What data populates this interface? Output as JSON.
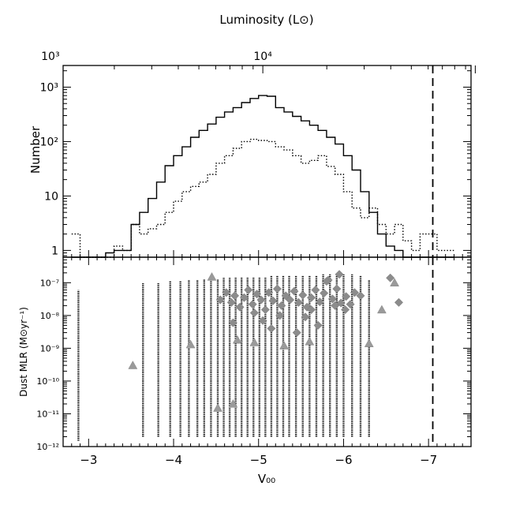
{
  "chart_data": [
    {
      "type": "line",
      "step": true,
      "panel": "top",
      "ylabel": "Number",
      "top_axis_label": "Luminosity (L⊙)",
      "top_axis_ticks": [
        {
          "value": 1000,
          "label": "10³"
        },
        {
          "value": 10000,
          "label": "10⁴"
        }
      ],
      "x_inverted": true,
      "xlim": [
        -2.7,
        -7.5
      ],
      "yscale": "log",
      "ylim": [
        0.75,
        2500
      ],
      "y_ticks": [
        {
          "value": 1,
          "label": "1"
        },
        {
          "value": 10,
          "label": "10"
        },
        {
          "value": 100,
          "label": "10²"
        },
        {
          "value": 1000,
          "label": "10³"
        }
      ],
      "bin_edges": [
        -2.8,
        -2.9,
        -3.0,
        -3.1,
        -3.2,
        -3.3,
        -3.4,
        -3.5,
        -3.6,
        -3.7,
        -3.8,
        -3.9,
        -4.0,
        -4.1,
        -4.2,
        -4.3,
        -4.4,
        -4.5,
        -4.6,
        -4.7,
        -4.8,
        -4.9,
        -5.0,
        -5.1,
        -5.2,
        -5.3,
        -5.4,
        -5.5,
        -5.6,
        -5.7,
        -5.8,
        -5.9,
        -6.0,
        -6.1,
        -6.2,
        -6.3,
        -6.4,
        -6.5,
        -6.6,
        -6.7,
        -6.8,
        -6.9,
        -7.0,
        -7.1,
        -7.2,
        -7.3
      ],
      "series": [
        {
          "line_style": "solid",
          "counts": [
            0.7,
            0.7,
            0.7,
            0.7,
            0.9,
            1,
            1,
            3,
            5,
            9,
            18,
            36,
            55,
            80,
            120,
            160,
            210,
            280,
            350,
            420,
            520,
            620,
            700,
            680,
            420,
            350,
            290,
            240,
            200,
            160,
            120,
            90,
            55,
            30,
            12,
            5,
            2,
            1.2,
            1,
            0.7,
            0.7,
            0.7,
            0.7,
            0.7,
            0.7
          ]
        },
        {
          "line_style": "dotted",
          "counts": [
            2,
            0.7,
            0.7,
            0.7,
            0.7,
            1.2,
            1,
            3,
            2,
            2.5,
            3,
            5,
            8,
            12,
            15,
            18,
            25,
            40,
            55,
            75,
            100,
            110,
            105,
            100,
            80,
            70,
            55,
            40,
            45,
            55,
            35,
            25,
            12,
            6,
            4,
            6,
            3,
            2,
            3,
            1.5,
            1,
            2,
            2,
            1,
            1
          ]
        }
      ],
      "vertical_line": {
        "x": -7.05,
        "style": "dashed"
      }
    },
    {
      "type": "scatter",
      "panel": "bottom",
      "xlabel": "V₀₀",
      "ylabel": "Dust MLR (M⊙yr⁻¹)",
      "x_inverted": true,
      "xlim": [
        -2.7,
        -7.5
      ],
      "yscale": "log",
      "ylim": [
        1e-12,
        6e-07
      ],
      "x_ticks": [
        {
          "value": -3,
          "label": "−3"
        },
        {
          "value": -4,
          "label": "−4"
        },
        {
          "value": -5,
          "label": "−5"
        },
        {
          "value": -6,
          "label": "−6"
        },
        {
          "value": -7,
          "label": "−7"
        }
      ],
      "y_ticks": [
        {
          "value": 1e-12,
          "label": "10⁻¹²"
        },
        {
          "value": 1e-11,
          "label": "10⁻¹¹"
        },
        {
          "value": 1e-10,
          "label": "10⁻¹⁰"
        },
        {
          "value": 1e-09,
          "label": "10⁻⁹"
        },
        {
          "value": 1e-08,
          "label": "10⁻⁸"
        },
        {
          "value": 1e-07,
          "label": "10⁻⁷"
        }
      ],
      "dot_columns": [
        {
          "x": -2.88,
          "ymin": 1.5e-12,
          "ymax": 6e-08
        },
        {
          "x": -3.64,
          "ymin": 2e-12,
          "ymax": 1e-07
        },
        {
          "x": -3.82,
          "ymin": 2e-12,
          "ymax": 1e-07
        },
        {
          "x": -3.96,
          "ymin": 2e-12,
          "ymax": 1.1e-07
        },
        {
          "x": -4.08,
          "ymin": 2e-12,
          "ymax": 1.1e-07
        },
        {
          "x": -4.18,
          "ymin": 2e-12,
          "ymax": 1.2e-07
        },
        {
          "x": -4.28,
          "ymin": 2e-12,
          "ymax": 1.2e-07
        },
        {
          "x": -4.36,
          "ymin": 2e-12,
          "ymax": 1.3e-07
        },
        {
          "x": -4.44,
          "ymin": 2e-12,
          "ymax": 1.3e-07
        },
        {
          "x": -4.52,
          "ymin": 2e-12,
          "ymax": 1.3e-07
        },
        {
          "x": -4.59,
          "ymin": 2e-12,
          "ymax": 1.4e-07
        },
        {
          "x": -4.66,
          "ymin": 2e-12,
          "ymax": 1.4e-07
        },
        {
          "x": -4.73,
          "ymin": 2e-12,
          "ymax": 1.5e-07
        },
        {
          "x": -4.8,
          "ymin": 2e-12,
          "ymax": 1.5e-07
        },
        {
          "x": -4.87,
          "ymin": 2e-12,
          "ymax": 1.5e-07
        },
        {
          "x": -4.94,
          "ymin": 2e-12,
          "ymax": 1.5e-07
        },
        {
          "x": -5.01,
          "ymin": 2e-12,
          "ymax": 1.5e-07
        },
        {
          "x": -5.08,
          "ymin": 2e-12,
          "ymax": 1.5e-07
        },
        {
          "x": -5.15,
          "ymin": 2e-12,
          "ymax": 1.6e-07
        },
        {
          "x": -5.22,
          "ymin": 2e-12,
          "ymax": 1.6e-07
        },
        {
          "x": -5.29,
          "ymin": 2e-12,
          "ymax": 1.6e-07
        },
        {
          "x": -5.36,
          "ymin": 2e-12,
          "ymax": 1.6e-07
        },
        {
          "x": -5.44,
          "ymin": 2e-12,
          "ymax": 1.6e-07
        },
        {
          "x": -5.52,
          "ymin": 2e-12,
          "ymax": 1.7e-07
        },
        {
          "x": -5.6,
          "ymin": 2e-12,
          "ymax": 1.7e-07
        },
        {
          "x": -5.68,
          "ymin": 2e-12,
          "ymax": 1.7e-07
        },
        {
          "x": -5.76,
          "ymin": 2e-12,
          "ymax": 1.8e-07
        },
        {
          "x": -5.84,
          "ymin": 2e-12,
          "ymax": 1.8e-07
        },
        {
          "x": -5.92,
          "ymin": 2e-12,
          "ymax": 1.8e-07
        },
        {
          "x": -6.0,
          "ymin": 2e-12,
          "ymax": 1.8e-07
        },
        {
          "x": -6.1,
          "ymin": 2e-12,
          "ymax": 1.8e-07
        },
        {
          "x": -6.2,
          "ymin": 2e-12,
          "ymax": 1.6e-07
        },
        {
          "x": -6.3,
          "ymin": 2e-12,
          "ymax": 1.2e-07
        }
      ],
      "diamonds": [
        [
          -4.55,
          3e-08
        ],
        [
          -4.62,
          5e-08
        ],
        [
          -4.68,
          2.5e-08
        ],
        [
          -4.72,
          4e-08
        ],
        [
          -4.78,
          1.8e-08
        ],
        [
          -4.83,
          3.5e-08
        ],
        [
          -4.88,
          6e-08
        ],
        [
          -4.93,
          2.2e-08
        ],
        [
          -4.98,
          4.5e-08
        ],
        [
          -5.03,
          3e-08
        ],
        [
          -5.08,
          1.5e-08
        ],
        [
          -5.12,
          5e-08
        ],
        [
          -5.17,
          2.8e-08
        ],
        [
          -5.22,
          6.5e-08
        ],
        [
          -5.27,
          2e-08
        ],
        [
          -5.32,
          4e-08
        ],
        [
          -5.37,
          3e-08
        ],
        [
          -5.42,
          5.5e-08
        ],
        [
          -5.47,
          2.5e-08
        ],
        [
          -5.52,
          4.2e-08
        ],
        [
          -5.57,
          1.8e-08
        ],
        [
          -5.62,
          3.5e-08
        ],
        [
          -5.67,
          6e-08
        ],
        [
          -5.72,
          2.6e-08
        ],
        [
          -5.77,
          4.8e-08
        ],
        [
          -5.82,
          1.2e-07
        ],
        [
          -5.87,
          3.2e-08
        ],
        [
          -5.92,
          6.5e-08
        ],
        [
          -5.97,
          2.4e-08
        ],
        [
          -6.03,
          3.8e-08
        ],
        [
          -6.08,
          2.2e-08
        ],
        [
          -6.13,
          5e-08
        ],
        [
          -6.2,
          4e-08
        ],
        [
          -4.95,
          1.2e-08
        ],
        [
          -5.25,
          1e-08
        ],
        [
          -5.55,
          9e-09
        ],
        [
          -5.7,
          5e-09
        ],
        [
          -5.45,
          3e-09
        ],
        [
          -5.9,
          2e-08
        ],
        [
          -5.8,
          1.1e-07
        ],
        [
          -5.95,
          1.8e-07
        ],
        [
          -4.7,
          6e-09
        ],
        [
          -5.15,
          4e-09
        ],
        [
          -5.05,
          7e-09
        ],
        [
          -5.62,
          1.5e-08
        ],
        [
          -6.02,
          1.5e-08
        ],
        [
          -6.55,
          1.4e-07
        ],
        [
          -6.65,
          2.5e-08
        ]
      ],
      "triangles": [
        [
          -3.52,
          3e-10
        ],
        [
          -4.2,
          1.3e-09
        ],
        [
          -4.45,
          1.5e-07
        ],
        [
          -4.52,
          1.5e-11
        ],
        [
          -4.7,
          2e-11
        ],
        [
          -4.75,
          1.8e-09
        ],
        [
          -4.95,
          1.5e-09
        ],
        [
          -5.3,
          1.2e-09
        ],
        [
          -5.6,
          1.6e-09
        ],
        [
          -6.3,
          1.4e-09
        ],
        [
          -6.45,
          1.5e-08
        ],
        [
          -6.6,
          1e-07
        ]
      ],
      "vertical_line": {
        "x": -7.05,
        "style": "dashed"
      }
    }
  ]
}
